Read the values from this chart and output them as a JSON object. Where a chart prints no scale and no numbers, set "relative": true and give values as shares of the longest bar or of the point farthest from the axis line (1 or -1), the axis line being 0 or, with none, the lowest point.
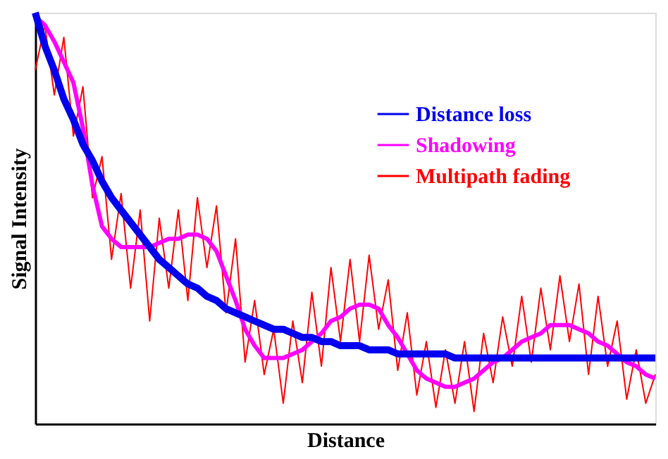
{
  "chart_data": {
    "type": "line",
    "relative": true,
    "xlabel": "Distance",
    "ylabel": "Signal Intensity",
    "categories": [
      null,
      null,
      null,
      null,
      null,
      null,
      null,
      null,
      null,
      null,
      null,
      null,
      null,
      null,
      null,
      null,
      null,
      null,
      null,
      null,
      null,
      null,
      null,
      null,
      null,
      null,
      null,
      null,
      null,
      null,
      null,
      null,
      null,
      null,
      null,
      null,
      null,
      null,
      null,
      null,
      null,
      null,
      null,
      null,
      null,
      null,
      null,
      null,
      null,
      null,
      null,
      null,
      null,
      null,
      null,
      null,
      null,
      null,
      null,
      null,
      null,
      null,
      null,
      null,
      null,
      null
    ],
    "tick_labels": false,
    "legend": "top right",
    "grid": false,
    "marker": "none",
    "line_style": "solid",
    "series": [
      {
        "name": "Distance loss",
        "color": "#0000ee",
        "values": [
          1.0,
          0.92,
          0.86,
          0.79,
          0.74,
          0.68,
          0.64,
          0.59,
          0.55,
          0.52,
          0.49,
          0.46,
          0.43,
          0.4,
          0.38,
          0.36,
          0.34,
          0.33,
          0.31,
          0.3,
          0.28,
          0.27,
          0.26,
          0.25,
          0.24,
          0.23,
          0.23,
          0.22,
          0.21,
          0.21,
          0.2,
          0.2,
          0.19,
          0.19,
          0.19,
          0.18,
          0.18,
          0.18,
          0.17,
          0.17,
          0.17,
          0.17,
          0.17,
          0.17,
          0.16,
          0.16,
          0.16,
          0.16,
          0.16,
          0.16,
          0.16,
          0.16,
          0.16,
          0.16,
          0.16,
          0.16,
          0.16,
          0.16,
          0.16,
          0.16,
          0.16,
          0.16,
          0.16,
          0.16,
          0.16,
          0.16
        ]
      },
      {
        "name": "Shadowing",
        "color": "#ff00ff",
        "values": [
          0.99,
          0.97,
          0.93,
          0.88,
          0.83,
          0.72,
          0.58,
          0.48,
          0.45,
          0.43,
          0.43,
          0.43,
          0.43,
          0.44,
          0.45,
          0.45,
          0.46,
          0.46,
          0.45,
          0.42,
          0.36,
          0.3,
          0.23,
          0.19,
          0.16,
          0.16,
          0.16,
          0.17,
          0.18,
          0.2,
          0.22,
          0.25,
          0.26,
          0.28,
          0.29,
          0.29,
          0.28,
          0.24,
          0.21,
          0.17,
          0.13,
          0.11,
          0.1,
          0.09,
          0.09,
          0.1,
          0.11,
          0.13,
          0.15,
          0.16,
          0.18,
          0.2,
          0.21,
          0.22,
          0.24,
          0.24,
          0.24,
          0.23,
          0.22,
          0.2,
          0.19,
          0.17,
          0.15,
          0.14,
          0.12,
          0.11
        ]
      },
      {
        "name": "Multipath fading",
        "color": "#ff0000",
        "values": [
          0.86,
          0.97,
          0.8,
          0.94,
          0.7,
          0.82,
          0.55,
          0.65,
          0.4,
          0.56,
          0.33,
          0.52,
          0.25,
          0.5,
          0.33,
          0.52,
          0.3,
          0.55,
          0.38,
          0.53,
          0.27,
          0.45,
          0.15,
          0.3,
          0.12,
          0.23,
          0.05,
          0.25,
          0.1,
          0.32,
          0.14,
          0.38,
          0.2,
          0.4,
          0.2,
          0.41,
          0.23,
          0.35,
          0.13,
          0.27,
          0.07,
          0.2,
          0.04,
          0.18,
          0.05,
          0.2,
          0.03,
          0.22,
          0.1,
          0.26,
          0.14,
          0.31,
          0.15,
          0.33,
          0.18,
          0.36,
          0.2,
          0.34,
          0.12,
          0.31,
          0.14,
          0.25,
          0.06,
          0.18,
          0.05,
          0.12
        ]
      }
    ]
  }
}
